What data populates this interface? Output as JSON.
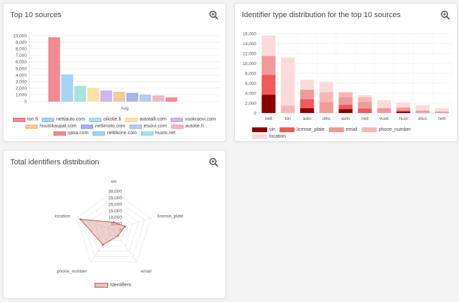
{
  "cards": {
    "top_sources": {
      "title": "Top 10 sources"
    },
    "identifier_types": {
      "title": "Identifier type distribution for the top 10 sources"
    },
    "total_identifiers": {
      "title": "Total identifiers distribution"
    }
  },
  "chart_data": [
    {
      "type": "bar",
      "categories": [
        "Aug"
      ],
      "ylim": [
        0,
        10000
      ],
      "yticks": [
        "0",
        "1,000",
        "2,000",
        "3,000",
        "4,000",
        "5,000",
        "6,000",
        "7,000",
        "8,000",
        "9,000",
        "10,000"
      ],
      "xlabel": "Aug",
      "series": [
        {
          "name": "tori.fi",
          "values": [
            9700
          ],
          "fill": "#f28b92",
          "stroke": "#e8616b"
        },
        {
          "name": "nettiauto.com",
          "values": [
            4050
          ],
          "fill": "#a7d3f2",
          "stroke": "#7bbce8"
        },
        {
          "name": "oikotie.fi",
          "values": [
            2300
          ],
          "fill": "#a9e3e0",
          "stroke": "#7fd3cf"
        },
        {
          "name": "autotalli.com",
          "values": [
            2000
          ],
          "fill": "#fde3a7",
          "stroke": "#f8cf73"
        },
        {
          "name": "vuokraovi.com",
          "values": [
            1600
          ],
          "fill": "#cfb8f2",
          "stroke": "#b898ea"
        },
        {
          "name": "huutokaupat.com",
          "values": [
            1400
          ],
          "fill": "#f8c99a",
          "stroke": "#f2ad6b"
        },
        {
          "name": "nettimoto.com",
          "values": [
            1250
          ],
          "fill": "#a5b6e8",
          "stroke": "#7e95da"
        },
        {
          "name": "etuovi.com",
          "values": [
            950
          ],
          "fill": "#b8ccf0",
          "stroke": "#94b0e8"
        },
        {
          "name": "autotie.fi",
          "values": [
            850
          ],
          "fill": "#f6b7c6",
          "stroke": "#ee94ab"
        },
        {
          "name": "qasa.com",
          "values": [
            550
          ],
          "fill": "#f28b92",
          "stroke": "#e8616b"
        },
        {
          "name": "nettikone.com",
          "values": [
            0
          ],
          "fill": "#a7d3f2",
          "stroke": "#7bbce8"
        },
        {
          "name": "huuto.net",
          "values": [
            0
          ],
          "fill": "#a9e3e0",
          "stroke": "#7fd3cf"
        }
      ]
    },
    {
      "type": "bar",
      "stacked": true,
      "categories": [
        "nett",
        "tori",
        "auto",
        "oiko",
        "auto",
        "nett",
        "vuok",
        "huut",
        "etuo",
        "nett"
      ],
      "ylim": [
        0,
        16000
      ],
      "yticks": [
        "0",
        "2,000",
        "4,000",
        "6,000",
        "8,000",
        "10,000",
        "12,000",
        "14,000",
        "16,000"
      ],
      "series": [
        {
          "name": "vin",
          "color": "#8b0000",
          "values": [
            3700,
            0,
            1000,
            0,
            800,
            0,
            0,
            300,
            0,
            0
          ]
        },
        {
          "name": "license_plate",
          "color": "#ef5a5a",
          "values": [
            4000,
            0,
            1800,
            0,
            900,
            900,
            0,
            200,
            0,
            0
          ]
        },
        {
          "name": "email",
          "color": "#f19a9a",
          "values": [
            3800,
            0,
            1900,
            2200,
            1500,
            1300,
            1000,
            600,
            500,
            300
          ]
        },
        {
          "name": "phone_number",
          "color": "#f5b8b8",
          "values": [
            0,
            1500,
            0,
            2000,
            1000,
            1000,
            0,
            0,
            0,
            0
          ]
        },
        {
          "name": "location",
          "color": "#fcdada",
          "values": [
            4100,
            9700,
            2000,
            2100,
            0,
            400,
            1600,
            1000,
            1100,
            700
          ]
        }
      ]
    },
    {
      "type": "radar",
      "labels": [
        "vin",
        "license_plate",
        "email",
        "phone_number",
        "location"
      ],
      "rticks": [
        "0",
        "5,000",
        "10,000",
        "15,000",
        "20,000",
        "25,000",
        "30,000"
      ],
      "rmax": 30000,
      "series": [
        {
          "name": "Identifiers",
          "values": [
            6000,
            9000,
            5500,
            14000,
            27000
          ],
          "fill": "rgba(205,120,120,0.35)",
          "stroke": "#b85a5a"
        }
      ]
    }
  ]
}
